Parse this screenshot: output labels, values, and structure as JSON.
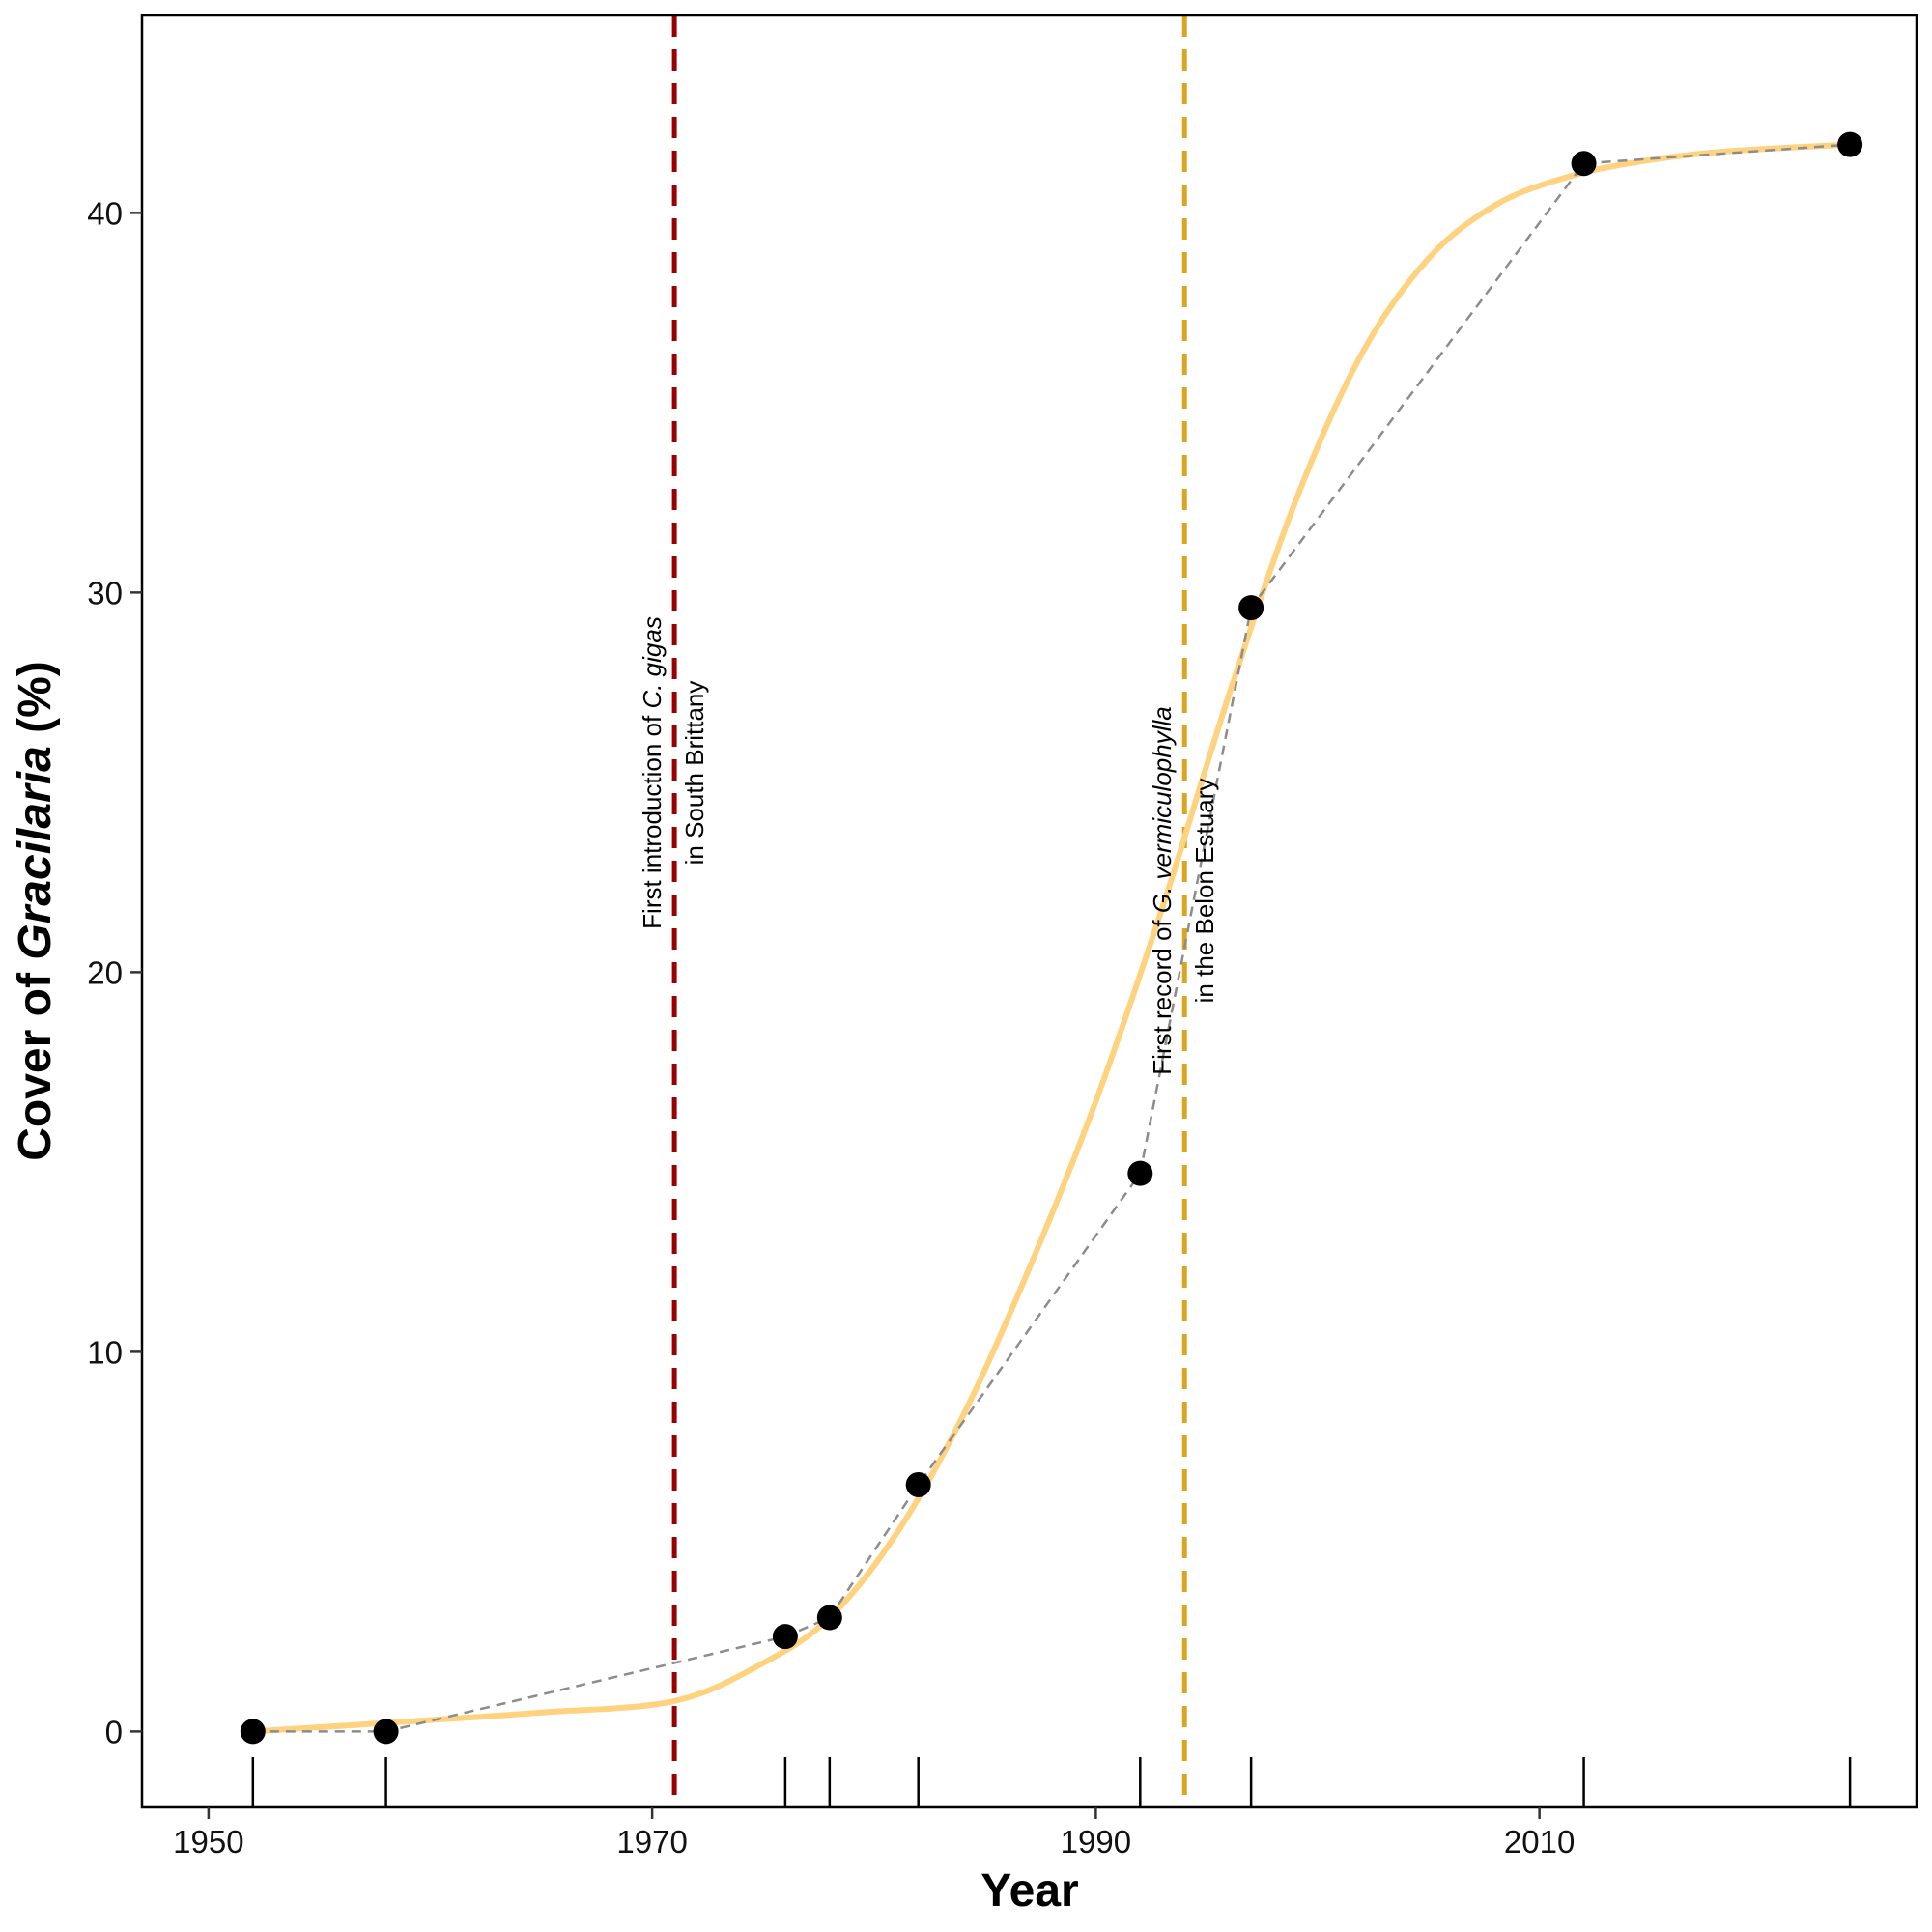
{
  "chart_data": {
    "type": "scatter",
    "xlabel": "Year",
    "ylabel_prefix": "Cover of ",
    "ylabel_italic": "Gracilaria",
    "ylabel_suffix": " (%)",
    "xlim": [
      1947.0,
      2027.0
    ],
    "ylim": [
      -2.0,
      45.2
    ],
    "x_ticks": [
      1950,
      1970,
      1990,
      2010
    ],
    "x_tick_labels": [
      "1950",
      "1970",
      "1990",
      "2010"
    ],
    "y_ticks": [
      0,
      10,
      20,
      30,
      40
    ],
    "y_tick_labels": [
      "0",
      "10",
      "20",
      "30",
      "40"
    ],
    "grid": false,
    "legend": "none",
    "observations": {
      "x": [
        1952,
        1958,
        1976,
        1978,
        1982,
        1992,
        1997,
        2012,
        2024
      ],
      "y": [
        0.0,
        0.0,
        2.5,
        3.0,
        6.5,
        14.7,
        29.6,
        41.3,
        41.8
      ],
      "color": "#000000"
    },
    "fitted_curve": {
      "x": [
        1952,
        1960,
        1965,
        1971,
        1975,
        1978,
        1981,
        1984,
        1987,
        1990,
        1993,
        1996,
        1999,
        2002,
        2005,
        2008,
        2011,
        2014,
        2018,
        2024
      ],
      "y": [
        0.0,
        0.3,
        0.5,
        0.8,
        1.8,
        3.0,
        5.2,
        8.3,
        12.2,
        16.6,
        21.7,
        27.3,
        32.4,
        36.3,
        38.8,
        40.2,
        40.9,
        41.3,
        41.6,
        41.8
      ],
      "color": "#ffd27f"
    },
    "rug_x": [
      1952,
      1958,
      1976,
      1978,
      1982,
      1992,
      1997,
      2012,
      2024
    ],
    "events": [
      {
        "x": 1971,
        "color": "#990000",
        "line1_plain": "First introduction of ",
        "line1_italic": "C. gigas",
        "line2": "in South Brittany"
      },
      {
        "x": 1994,
        "color": "#daa520",
        "line1_plain": "First record of ",
        "line1_italic": "G. vermiculophylla",
        "line2": "in the Belon Estuary"
      }
    ]
  }
}
